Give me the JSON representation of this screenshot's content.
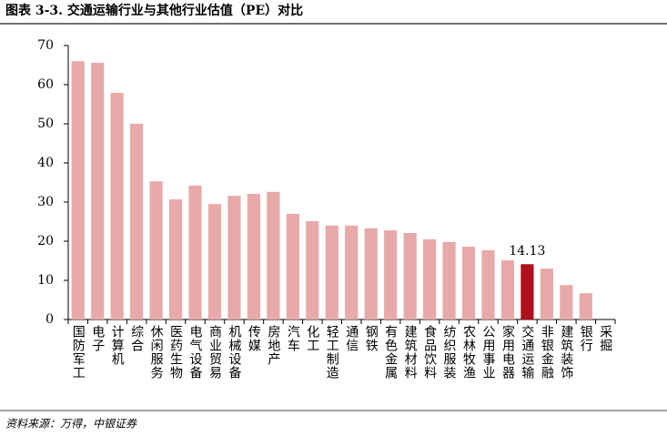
{
  "chart_data": {
    "type": "bar",
    "title": "图表 3-3. 交通运输行业与其他行业估值（PE）对比",
    "source": "资料来源：万得，中银证券",
    "categories": [
      "国防军工",
      "电子",
      "计算机",
      "综合",
      "休闲服务",
      "医药生物",
      "电气设备",
      "商业贸易",
      "机械设备",
      "传媒",
      "房地产",
      "汽车",
      "化工",
      "轻工制造",
      "通信",
      "钢铁",
      "有色金属",
      "建筑材料",
      "食品饮料",
      "纺织服装",
      "农林牧渔",
      "公用事业",
      "家用电器",
      "交通运输",
      "非银金融",
      "建筑装饰",
      "银行",
      "采掘"
    ],
    "values": [
      66.0,
      65.6,
      57.9,
      50.0,
      35.3,
      30.7,
      34.2,
      29.5,
      31.6,
      32.1,
      32.6,
      27.0,
      25.1,
      24.0,
      24.0,
      23.3,
      22.8,
      22.1,
      20.5,
      19.8,
      18.6,
      17.7,
      15.1,
      14.13,
      13.0,
      8.8,
      6.7,
      null
    ],
    "value_labels": [
      null,
      null,
      null,
      null,
      null,
      null,
      null,
      null,
      null,
      null,
      null,
      null,
      null,
      null,
      null,
      null,
      null,
      null,
      null,
      null,
      null,
      null,
      null,
      "14.13",
      null,
      null,
      null,
      null
    ],
    "colors": [
      "#e8a9a9",
      "#e8a9a9",
      "#e8a9a9",
      "#e8a9a9",
      "#e8a9a9",
      "#e8a9a9",
      "#e8a9a9",
      "#e8a9a9",
      "#e8a9a9",
      "#e8a9a9",
      "#e8a9a9",
      "#e8a9a9",
      "#e8a9a9",
      "#e8a9a9",
      "#e8a9a9",
      "#e8a9a9",
      "#e8a9a9",
      "#e8a9a9",
      "#e8a9a9",
      "#e8a9a9",
      "#e8a9a9",
      "#e8a9a9",
      "#e8a9a9",
      "#b0101c",
      "#e8a9a9",
      "#e8a9a9",
      "#e8a9a9",
      "#e8a9a9"
    ],
    "ylim": [
      0,
      70
    ],
    "yticks": [
      0,
      10,
      20,
      30,
      40,
      50,
      60,
      70
    ],
    "grid": false
  }
}
